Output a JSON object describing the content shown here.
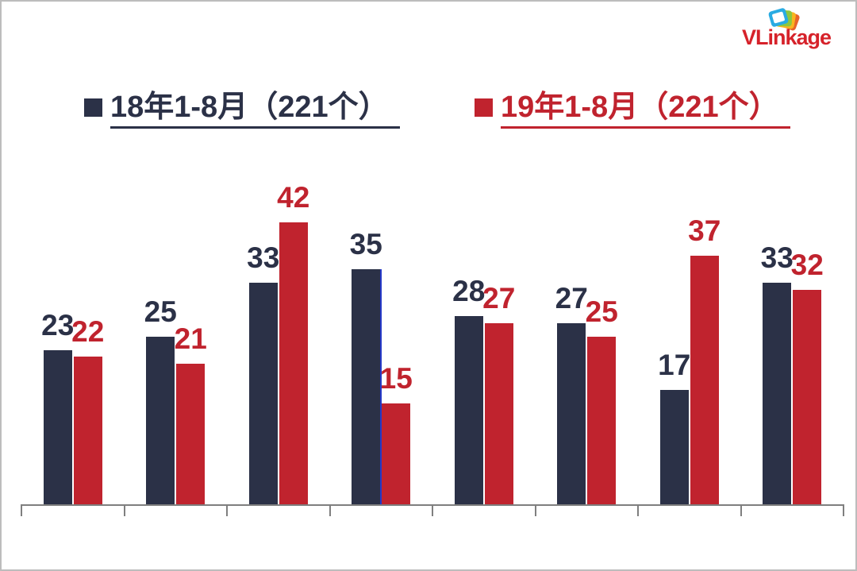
{
  "logo": {
    "text": "VLinkage",
    "text_color": "#d6222a",
    "icon_colors": {
      "back_card": "#e8632a",
      "mid_card": "#f9b41e",
      "green_card": "#8dc63f",
      "front_card": "#29abe2",
      "front_center": "#ffffff"
    }
  },
  "legend": {
    "items": [
      {
        "label": "18年1-8月（221个）",
        "color": "#2b3147"
      },
      {
        "label": "19年1-8月（221个）",
        "color": "#c0232e"
      }
    ]
  },
  "chart_data": {
    "type": "bar",
    "title": "",
    "xlabel": "",
    "ylabel": "",
    "categories": [
      "",
      "",
      "",
      "",
      "",
      "",
      "",
      ""
    ],
    "series": [
      {
        "name": "18年1-8月（221个）",
        "color": "#2b3147",
        "values": [
          23,
          25,
          33,
          35,
          28,
          27,
          17,
          33
        ]
      },
      {
        "name": "19年1-8月（221个）",
        "color": "#c0232e",
        "values": [
          22,
          21,
          42,
          15,
          27,
          25,
          37,
          32
        ]
      }
    ],
    "ylim": [
      0,
      45
    ],
    "grid": false,
    "value_axis_visible": false,
    "category_axis": {
      "visible": true,
      "color": "#7f7f7f",
      "tick_count": 9,
      "labels_visible": false
    },
    "data_labels": {
      "visible": true,
      "colors_match_series": true
    },
    "legend_position": "top",
    "artifact_line": {
      "group_index": 3,
      "color": "#2438c8"
    }
  }
}
